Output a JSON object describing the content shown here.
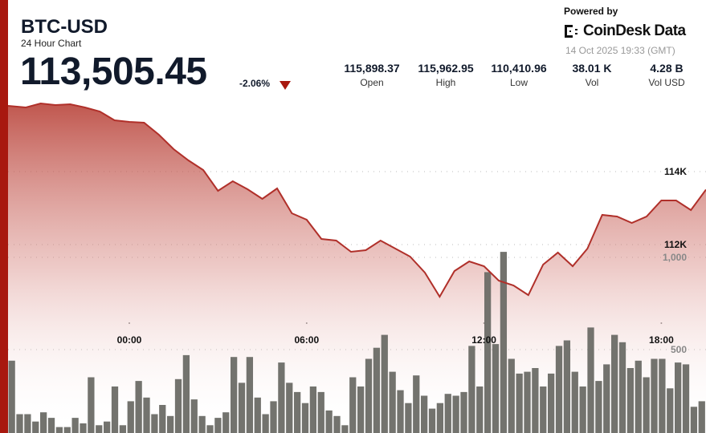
{
  "header": {
    "symbol": "BTC-USD",
    "subtitle": "24 Hour Chart",
    "price": "113,505.45",
    "change": "-2.06%",
    "change_direction": "down",
    "powered_by": "Powered by",
    "brand": "CoinDesk Data",
    "timestamp": "14 Oct 2025 19:33 (GMT)"
  },
  "stats": [
    {
      "value": "115,898.37",
      "label": "Open"
    },
    {
      "value": "115,962.95",
      "label": "High"
    },
    {
      "value": "110,410.96",
      "label": "Low"
    },
    {
      "value": "38.01 K",
      "label": "Vol"
    },
    {
      "value": "4.28 B",
      "label": "Vol USD"
    }
  ],
  "colors": {
    "accent": "#a8180f",
    "line": "#b0302a",
    "volume": "#6b6b66",
    "text": "#111a2b"
  },
  "chart_data": {
    "type": "line",
    "price": {
      "x": [
        "20:00",
        "20:30",
        "21:00",
        "21:30",
        "22:00",
        "22:30",
        "23:00",
        "23:30",
        "00:00",
        "00:30",
        "01:00",
        "01:30",
        "02:00",
        "02:30",
        "03:00",
        "03:30",
        "04:00",
        "04:30",
        "05:00",
        "05:30",
        "06:00",
        "06:30",
        "07:00",
        "07:30",
        "08:00",
        "08:30",
        "09:00",
        "09:30",
        "10:00",
        "10:30",
        "11:00",
        "11:30",
        "12:00",
        "12:30",
        "13:00",
        "13:30",
        "14:00",
        "14:30",
        "15:00",
        "15:30",
        "16:00",
        "16:30",
        "17:00",
        "17:30",
        "18:00",
        "18:30",
        "19:00",
        "19:30"
      ],
      "y": [
        115802,
        115758,
        115868,
        115824,
        115846,
        115758,
        115649,
        115407,
        115363,
        115341,
        115011,
        114615,
        114308,
        114044,
        113472,
        113736,
        113516,
        113253,
        113538,
        112857,
        112681,
        112154,
        112110,
        111802,
        111846,
        112110,
        111890,
        111670,
        111231,
        110571,
        111275,
        111538,
        111406,
        111011,
        110879,
        110615,
        111450,
        111780,
        111406,
        111890,
        112813,
        112769,
        112593,
        112769,
        113209,
        113209,
        112945,
        113505
      ],
      "y_ticks": [
        {
          "value": 114000,
          "label": "114K"
        },
        {
          "value": 112000,
          "label": "112K"
        }
      ]
    },
    "volume": {
      "type": "bar",
      "values": [
        440,
        150,
        150,
        110,
        160,
        130,
        80,
        80,
        130,
        100,
        350,
        90,
        110,
        300,
        90,
        220,
        330,
        240,
        150,
        200,
        140,
        340,
        470,
        230,
        140,
        90,
        130,
        160,
        460,
        320,
        460,
        240,
        150,
        220,
        430,
        320,
        270,
        210,
        300,
        270,
        170,
        140,
        90,
        350,
        300,
        450,
        510,
        580,
        380,
        280,
        210,
        360,
        250,
        180,
        210,
        260,
        250,
        270,
        520,
        300,
        920,
        530,
        1030,
        450,
        370,
        380,
        400,
        300,
        370,
        520,
        550,
        380,
        300,
        620,
        330,
        420,
        580,
        540,
        400,
        440,
        350,
        450,
        450,
        290,
        430,
        420,
        190,
        220
      ],
      "y_ticks": [
        {
          "value": 1000,
          "label": "1,000"
        },
        {
          "value": 500,
          "label": "500"
        }
      ]
    },
    "x_ticks": [
      "00:00",
      "06:00",
      "12:00",
      "18:00"
    ],
    "grid": true
  }
}
